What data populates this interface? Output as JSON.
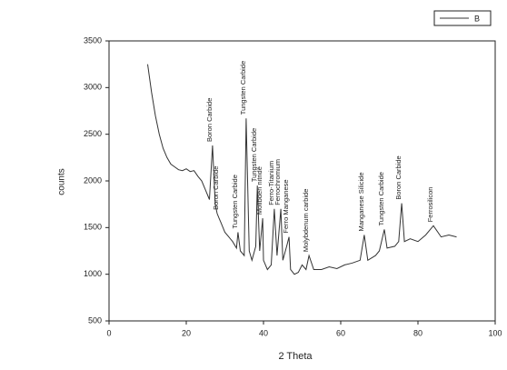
{
  "chart_data": {
    "type": "line",
    "xlabel": "2 Theta",
    "ylabel": "counts",
    "x": [
      10,
      11,
      12,
      13,
      14,
      15,
      16,
      17,
      18,
      19,
      20,
      21,
      22,
      23,
      24,
      25,
      26,
      26.8,
      27.5,
      28,
      28.5,
      29,
      30,
      31,
      32,
      33,
      33.4,
      34,
      35,
      35.5,
      36.3,
      37,
      38,
      38.4,
      39,
      39.8,
      40,
      41,
      42,
      42.8,
      43.5,
      44.5,
      45,
      46,
      46.6,
      47,
      48,
      49,
      50,
      51,
      51.8,
      53,
      55,
      57,
      59,
      61,
      63,
      65,
      66.1,
      67,
      69,
      70,
      71.3,
      72,
      74,
      75,
      75.8,
      76.5,
      78,
      80,
      82,
      84,
      86,
      88,
      90
    ],
    "series": [
      {
        "name": "B",
        "color": "#333333",
        "values": [
          3250,
          2950,
          2700,
          2500,
          2350,
          2250,
          2180,
          2150,
          2120,
          2110,
          2130,
          2100,
          2110,
          2050,
          2000,
          1900,
          1800,
          2380,
          1750,
          1650,
          1600,
          1550,
          1450,
          1400,
          1350,
          1280,
          1450,
          1250,
          1200,
          2670,
          1250,
          1150,
          1300,
          1950,
          1250,
          1600,
          1150,
          1050,
          1100,
          1700,
          1200,
          1700,
          1150,
          1300,
          1400,
          1050,
          1000,
          1020,
          1100,
          1050,
          1200,
          1050,
          1050,
          1080,
          1060,
          1100,
          1120,
          1150,
          1420,
          1150,
          1200,
          1250,
          1480,
          1280,
          1300,
          1350,
          1760,
          1350,
          1380,
          1350,
          1420,
          1520,
          1400,
          1420,
          1400
        ]
      }
    ],
    "annotations": [
      {
        "text": "Boron Carbide",
        "x": 26.8
      },
      {
        "text": "Boron Carbide",
        "x": 28.5
      },
      {
        "text": "Tungsten Carbide",
        "x": 33.4
      },
      {
        "text": "Tungsten Carbide",
        "x": 35.5
      },
      {
        "text": "Tungsten Carbide",
        "x": 38.4
      },
      {
        "text": "Molibden nitride",
        "x": 39.8
      },
      {
        "text": "Ferro-Titanium",
        "x": 42.8
      },
      {
        "text": "Ferrochromium",
        "x": 44.5
      },
      {
        "text": "Ferro Manganese",
        "x": 46.6
      },
      {
        "text": "Molybdenum carbide",
        "x": 51.8
      },
      {
        "text": "Manganese Silicide",
        "x": 66.1
      },
      {
        "text": "Tungsten Carbide",
        "x": 71.3
      },
      {
        "text": "Boron Carbide",
        "x": 75.8
      },
      {
        "text": "Ferrosilicon",
        "x": 84
      }
    ],
    "xlim": [
      0,
      100
    ],
    "xticks": [
      0,
      20,
      40,
      60,
      80,
      100
    ],
    "ylim": [
      500,
      3500
    ],
    "yticks": [
      500,
      1000,
      1500,
      2000,
      2500,
      3000,
      3500
    ],
    "legend": "upper right"
  }
}
